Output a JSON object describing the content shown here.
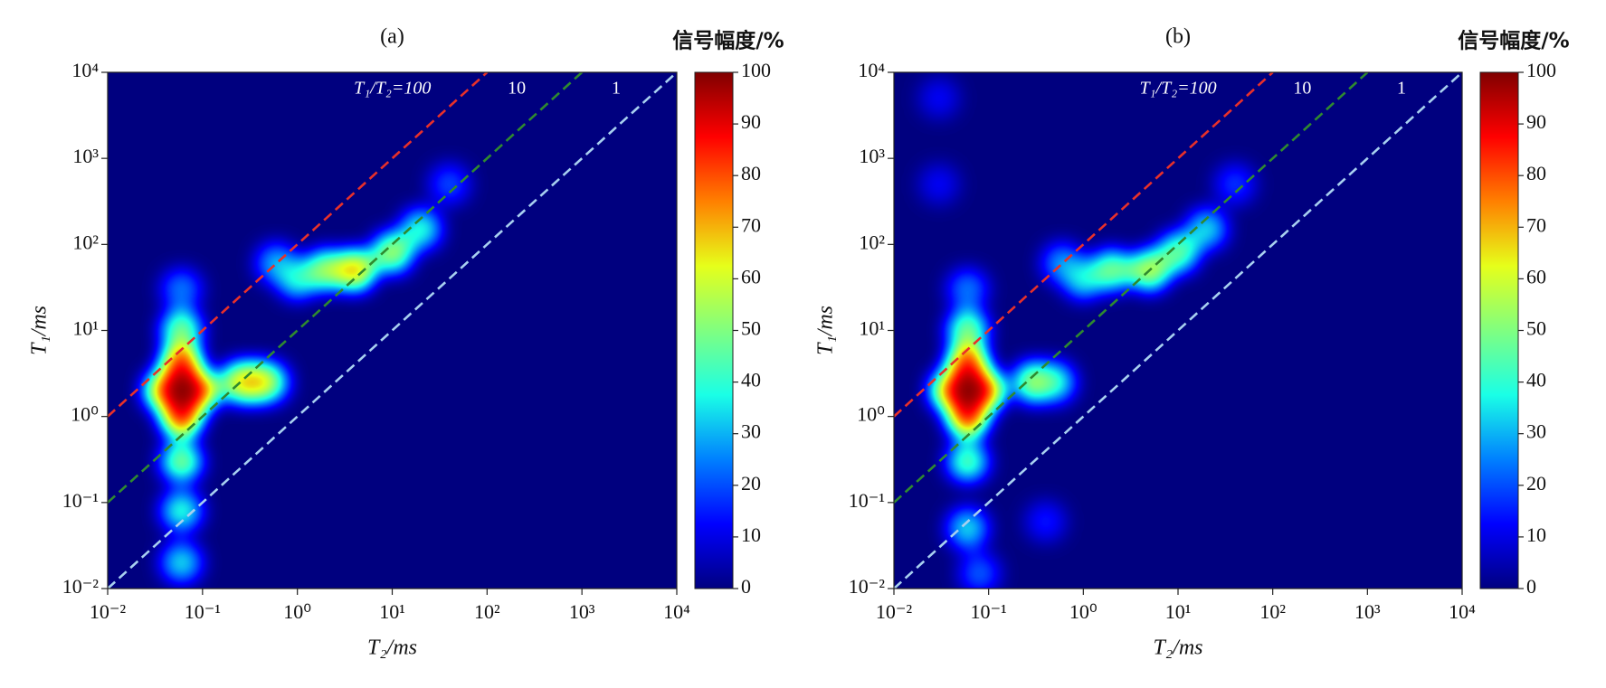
{
  "chart_data": [
    {
      "type": "heatmap",
      "title": "(a)",
      "x_label": "T₂/ms",
      "y_label": "T₁/ms",
      "log": true,
      "xlim": [
        0.01,
        10000
      ],
      "ylim": [
        0.01,
        10000
      ],
      "xticks": [
        {
          "value": 0.01,
          "label": "10⁻²"
        },
        {
          "value": 0.1,
          "label": "10⁻¹"
        },
        {
          "value": 1,
          "label": "10⁰"
        },
        {
          "value": 10,
          "label": "10¹"
        },
        {
          "value": 100,
          "label": "10²"
        },
        {
          "value": 1000,
          "label": "10³"
        },
        {
          "value": 10000,
          "label": "10⁴"
        }
      ],
      "yticks": [
        {
          "value": 0.01,
          "label": "10⁻²"
        },
        {
          "value": 0.1,
          "label": "10⁻¹"
        },
        {
          "value": 1,
          "label": "10⁰"
        },
        {
          "value": 10,
          "label": "10¹"
        },
        {
          "value": 100,
          "label": "10²"
        },
        {
          "value": 1000,
          "label": "10³"
        },
        {
          "value": 10000,
          "label": "10⁴"
        }
      ],
      "colormap": "jet",
      "colorbar": {
        "title": "信号幅度/%",
        "lim": [
          0,
          100
        ],
        "ticks": [
          0,
          10,
          20,
          30,
          40,
          50,
          60,
          70,
          80,
          90,
          100
        ]
      },
      "ratio_lines": [
        {
          "ratio": 100,
          "label": "T₁/T₂=100",
          "color": "#e8302a"
        },
        {
          "ratio": 10,
          "label": "10",
          "color": "#2f8a2f"
        },
        {
          "ratio": 1,
          "label": "1",
          "color": "#a8d0f0"
        }
      ],
      "x": [
        40,
        0.06,
        0.6,
        20,
        0.06,
        0.06,
        1,
        0.5,
        0.06,
        0.06,
        2,
        10,
        0.25,
        4,
        0.35,
        0.04,
        0.09,
        0.06,
        0.06,
        0.06
      ],
      "y": [
        500,
        30,
        60,
        150,
        0.02,
        0.08,
        40,
        2.5,
        0.3,
        10,
        50,
        80,
        2.5,
        50,
        2.5,
        2,
        2,
        1,
        4,
        2
      ],
      "values": [
        20,
        25,
        30,
        40,
        35,
        40,
        40,
        45,
        50,
        50,
        55,
        55,
        60,
        70,
        70,
        70,
        80,
        85,
        85,
        100
      ]
    },
    {
      "type": "heatmap",
      "title": "(b)",
      "x_label": "T₂/ms",
      "y_label": "T₁/ms",
      "log": true,
      "xlim": [
        0.01,
        10000
      ],
      "ylim": [
        0.01,
        10000
      ],
      "xticks": [
        {
          "value": 0.01,
          "label": "10⁻²"
        },
        {
          "value": 0.1,
          "label": "10⁻¹"
        },
        {
          "value": 1,
          "label": "10⁰"
        },
        {
          "value": 10,
          "label": "10¹"
        },
        {
          "value": 100,
          "label": "10²"
        },
        {
          "value": 1000,
          "label": "10³"
        },
        {
          "value": 10000,
          "label": "10⁴"
        }
      ],
      "yticks": [
        {
          "value": 0.01,
          "label": "10⁻²"
        },
        {
          "value": 0.1,
          "label": "10⁻¹"
        },
        {
          "value": 1,
          "label": "10⁰"
        },
        {
          "value": 10,
          "label": "10¹"
        },
        {
          "value": 100,
          "label": "10²"
        },
        {
          "value": 1000,
          "label": "10³"
        },
        {
          "value": 10000,
          "label": "10⁴"
        }
      ],
      "colormap": "jet",
      "colorbar": {
        "title": "信号幅度/%",
        "lim": [
          0,
          100
        ],
        "ticks": [
          0,
          10,
          20,
          30,
          40,
          50,
          60,
          70,
          80,
          90,
          100
        ]
      },
      "ratio_lines": [
        {
          "ratio": 100,
          "label": "T₁/T₂=100",
          "color": "#e8302a"
        },
        {
          "ratio": 10,
          "label": "10",
          "color": "#2f8a2f"
        },
        {
          "ratio": 1,
          "label": "1",
          "color": "#a8d0f0"
        }
      ],
      "x": [
        0.03,
        0.03,
        0.4,
        40,
        0.08,
        0.06,
        0.6,
        20,
        0.06,
        1,
        0.5,
        0.06,
        10,
        2,
        0.06,
        0.3,
        5,
        0.04,
        0.09,
        0.06,
        0.06,
        0.06
      ],
      "y": [
        5000,
        500,
        0.06,
        500,
        0.015,
        30,
        60,
        150,
        0.05,
        40,
        2.5,
        0.3,
        80,
        50,
        10,
        2.5,
        50,
        2,
        2,
        1,
        4,
        2
      ],
      "values": [
        12,
        12,
        15,
        18,
        22,
        25,
        28,
        35,
        35,
        38,
        40,
        45,
        48,
        50,
        50,
        55,
        58,
        70,
        80,
        85,
        85,
        100
      ]
    }
  ]
}
